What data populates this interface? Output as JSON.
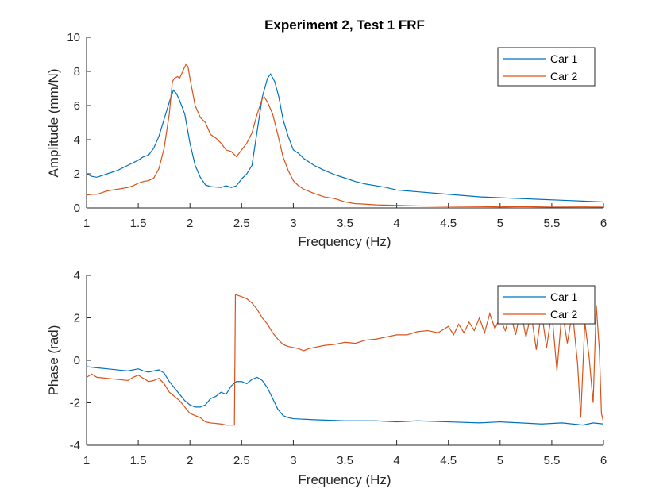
{
  "chart_data": [
    {
      "type": "line",
      "title": "Experiment 2, Test 1 FRF",
      "xlabel": "Frequency (Hz)",
      "ylabel": "Amplitude (mm/N)",
      "xlim": [
        1,
        6
      ],
      "ylim": [
        0,
        10
      ],
      "xticks": [
        1,
        1.5,
        2,
        2.5,
        3,
        3.5,
        4,
        4.5,
        5,
        5.5,
        6
      ],
      "xtick_labels": [
        "1",
        "1.5",
        "2",
        "2.5",
        "3",
        "3.5",
        "4",
        "4.5",
        "5",
        "5.5",
        "6"
      ],
      "yticks": [
        0,
        2,
        4,
        6,
        8,
        10
      ],
      "ytick_labels": [
        "0",
        "2",
        "4",
        "6",
        "8",
        "10"
      ],
      "legend_position": "top-right",
      "grid": false,
      "series": [
        {
          "name": "Car 1",
          "color": "#0072BD",
          "points": [
            [
              1.0,
              2.0
            ],
            [
              1.05,
              1.85
            ],
            [
              1.1,
              1.8
            ],
            [
              1.15,
              1.9
            ],
            [
              1.2,
              2.0
            ],
            [
              1.3,
              2.2
            ],
            [
              1.4,
              2.5
            ],
            [
              1.5,
              2.8
            ],
            [
              1.55,
              3.0
            ],
            [
              1.6,
              3.1
            ],
            [
              1.65,
              3.5
            ],
            [
              1.7,
              4.2
            ],
            [
              1.75,
              5.2
            ],
            [
              1.8,
              6.2
            ],
            [
              1.84,
              6.9
            ],
            [
              1.87,
              6.7
            ],
            [
              1.9,
              6.3
            ],
            [
              1.95,
              5.5
            ],
            [
              2.0,
              3.8
            ],
            [
              2.05,
              2.5
            ],
            [
              2.1,
              1.8
            ],
            [
              2.15,
              1.35
            ],
            [
              2.2,
              1.25
            ],
            [
              2.3,
              1.2
            ],
            [
              2.35,
              1.3
            ],
            [
              2.4,
              1.2
            ],
            [
              2.45,
              1.3
            ],
            [
              2.5,
              1.7
            ],
            [
              2.55,
              2.0
            ],
            [
              2.6,
              2.5
            ],
            [
              2.65,
              4.5
            ],
            [
              2.7,
              6.5
            ],
            [
              2.75,
              7.6
            ],
            [
              2.78,
              7.85
            ],
            [
              2.82,
              7.4
            ],
            [
              2.86,
              6.5
            ],
            [
              2.9,
              5.2
            ],
            [
              2.95,
              4.2
            ],
            [
              3.0,
              3.4
            ],
            [
              3.05,
              3.2
            ],
            [
              3.1,
              2.9
            ],
            [
              3.2,
              2.5
            ],
            [
              3.3,
              2.2
            ],
            [
              3.4,
              1.95
            ],
            [
              3.5,
              1.75
            ],
            [
              3.6,
              1.55
            ],
            [
              3.7,
              1.4
            ],
            [
              3.8,
              1.3
            ],
            [
              3.9,
              1.2
            ],
            [
              4.0,
              1.05
            ],
            [
              4.2,
              0.95
            ],
            [
              4.4,
              0.85
            ],
            [
              4.6,
              0.75
            ],
            [
              4.8,
              0.65
            ],
            [
              5.0,
              0.6
            ],
            [
              5.2,
              0.55
            ],
            [
              5.4,
              0.5
            ],
            [
              5.6,
              0.45
            ],
            [
              5.8,
              0.4
            ],
            [
              6.0,
              0.35
            ]
          ]
        },
        {
          "name": "Car 2",
          "color": "#D95319",
          "points": [
            [
              1.0,
              0.75
            ],
            [
              1.05,
              0.8
            ],
            [
              1.1,
              0.8
            ],
            [
              1.15,
              0.9
            ],
            [
              1.2,
              1.0
            ],
            [
              1.3,
              1.1
            ],
            [
              1.4,
              1.2
            ],
            [
              1.45,
              1.3
            ],
            [
              1.5,
              1.45
            ],
            [
              1.55,
              1.55
            ],
            [
              1.6,
              1.6
            ],
            [
              1.65,
              1.75
            ],
            [
              1.7,
              2.3
            ],
            [
              1.75,
              3.5
            ],
            [
              1.8,
              5.5
            ],
            [
              1.83,
              7.4
            ],
            [
              1.85,
              7.6
            ],
            [
              1.88,
              7.7
            ],
            [
              1.9,
              7.6
            ],
            [
              1.93,
              8.0
            ],
            [
              1.96,
              8.4
            ],
            [
              1.98,
              8.3
            ],
            [
              2.0,
              7.6
            ],
            [
              2.05,
              6.0
            ],
            [
              2.1,
              5.3
            ],
            [
              2.15,
              5.0
            ],
            [
              2.2,
              4.3
            ],
            [
              2.25,
              4.1
            ],
            [
              2.3,
              3.8
            ],
            [
              2.35,
              3.4
            ],
            [
              2.4,
              3.3
            ],
            [
              2.45,
              3.0
            ],
            [
              2.5,
              3.4
            ],
            [
              2.55,
              3.8
            ],
            [
              2.6,
              4.4
            ],
            [
              2.65,
              5.5
            ],
            [
              2.7,
              6.4
            ],
            [
              2.72,
              6.5
            ],
            [
              2.75,
              6.2
            ],
            [
              2.8,
              5.5
            ],
            [
              2.85,
              4.3
            ],
            [
              2.9,
              3.0
            ],
            [
              2.95,
              2.2
            ],
            [
              3.0,
              1.6
            ],
            [
              3.05,
              1.3
            ],
            [
              3.1,
              1.1
            ],
            [
              3.2,
              0.85
            ],
            [
              3.3,
              0.65
            ],
            [
              3.4,
              0.55
            ],
            [
              3.5,
              0.35
            ],
            [
              3.6,
              0.25
            ],
            [
              3.7,
              0.22
            ],
            [
              3.8,
              0.18
            ],
            [
              4.0,
              0.15
            ],
            [
              4.2,
              0.12
            ],
            [
              4.5,
              0.1
            ],
            [
              4.8,
              0.08
            ],
            [
              5.0,
              0.06
            ],
            [
              5.2,
              0.08
            ],
            [
              5.5,
              0.05
            ],
            [
              5.8,
              0.06
            ],
            [
              6.0,
              0.05
            ]
          ]
        }
      ]
    },
    {
      "type": "line",
      "title": "",
      "xlabel": "Frequency (Hz)",
      "ylabel": "Phase (rad)",
      "xlim": [
        1,
        6
      ],
      "ylim": [
        -4,
        4
      ],
      "xticks": [
        1,
        1.5,
        2,
        2.5,
        3,
        3.5,
        4,
        4.5,
        5,
        5.5,
        6
      ],
      "xtick_labels": [
        "1",
        "1.5",
        "2",
        "2.5",
        "3",
        "3.5",
        "4",
        "4.5",
        "5",
        "5.5",
        "6"
      ],
      "yticks": [
        -4,
        -2,
        0,
        2,
        4
      ],
      "ytick_labels": [
        "-4",
        "-2",
        "0",
        "2",
        "4"
      ],
      "legend_position": "top-right",
      "grid": false,
      "series": [
        {
          "name": "Car 1",
          "color": "#0072BD",
          "points": [
            [
              1.0,
              -0.3
            ],
            [
              1.1,
              -0.35
            ],
            [
              1.2,
              -0.4
            ],
            [
              1.3,
              -0.45
            ],
            [
              1.4,
              -0.5
            ],
            [
              1.5,
              -0.4
            ],
            [
              1.55,
              -0.5
            ],
            [
              1.6,
              -0.55
            ],
            [
              1.65,
              -0.5
            ],
            [
              1.7,
              -0.45
            ],
            [
              1.75,
              -0.6
            ],
            [
              1.8,
              -1.0
            ],
            [
              1.85,
              -1.3
            ],
            [
              1.9,
              -1.6
            ],
            [
              1.95,
              -1.9
            ],
            [
              2.0,
              -2.1
            ],
            [
              2.05,
              -2.2
            ],
            [
              2.1,
              -2.2
            ],
            [
              2.15,
              -2.1
            ],
            [
              2.2,
              -1.8
            ],
            [
              2.25,
              -1.7
            ],
            [
              2.3,
              -1.5
            ],
            [
              2.35,
              -1.6
            ],
            [
              2.4,
              -1.2
            ],
            [
              2.45,
              -1.0
            ],
            [
              2.5,
              -1.0
            ],
            [
              2.55,
              -1.1
            ],
            [
              2.6,
              -0.9
            ],
            [
              2.65,
              -0.8
            ],
            [
              2.7,
              -0.95
            ],
            [
              2.75,
              -1.3
            ],
            [
              2.8,
              -1.8
            ],
            [
              2.85,
              -2.3
            ],
            [
              2.9,
              -2.6
            ],
            [
              2.95,
              -2.7
            ],
            [
              3.0,
              -2.75
            ],
            [
              3.2,
              -2.8
            ],
            [
              3.5,
              -2.85
            ],
            [
              3.8,
              -2.85
            ],
            [
              4.0,
              -2.9
            ],
            [
              4.2,
              -2.85
            ],
            [
              4.5,
              -2.9
            ],
            [
              4.8,
              -2.95
            ],
            [
              5.0,
              -2.9
            ],
            [
              5.2,
              -2.95
            ],
            [
              5.4,
              -3.0
            ],
            [
              5.6,
              -2.95
            ],
            [
              5.8,
              -3.05
            ],
            [
              5.9,
              -2.95
            ],
            [
              6.0,
              -3.0
            ]
          ]
        },
        {
          "name": "Car 2",
          "color": "#D95319",
          "points": [
            [
              1.0,
              -0.8
            ],
            [
              1.05,
              -0.65
            ],
            [
              1.1,
              -0.8
            ],
            [
              1.2,
              -0.85
            ],
            [
              1.3,
              -0.9
            ],
            [
              1.4,
              -0.95
            ],
            [
              1.45,
              -0.8
            ],
            [
              1.5,
              -0.7
            ],
            [
              1.55,
              -0.85
            ],
            [
              1.6,
              -1.0
            ],
            [
              1.65,
              -0.95
            ],
            [
              1.7,
              -0.85
            ],
            [
              1.75,
              -1.1
            ],
            [
              1.8,
              -1.5
            ],
            [
              1.85,
              -1.7
            ],
            [
              1.9,
              -1.9
            ],
            [
              1.95,
              -2.2
            ],
            [
              2.0,
              -2.5
            ],
            [
              2.05,
              -2.6
            ],
            [
              2.1,
              -2.7
            ],
            [
              2.15,
              -2.9
            ],
            [
              2.2,
              -2.95
            ],
            [
              2.3,
              -3.0
            ],
            [
              2.35,
              -3.05
            ],
            [
              2.4,
              -3.05
            ],
            [
              2.43,
              -3.05
            ],
            [
              2.44,
              3.1
            ],
            [
              2.5,
              3.0
            ],
            [
              2.55,
              2.9
            ],
            [
              2.6,
              2.7
            ],
            [
              2.65,
              2.4
            ],
            [
              2.7,
              2.0
            ],
            [
              2.75,
              1.7
            ],
            [
              2.8,
              1.3
            ],
            [
              2.85,
              1.0
            ],
            [
              2.9,
              0.75
            ],
            [
              2.95,
              0.65
            ],
            [
              3.0,
              0.6
            ],
            [
              3.05,
              0.55
            ],
            [
              3.1,
              0.45
            ],
            [
              3.15,
              0.55
            ],
            [
              3.2,
              0.6
            ],
            [
              3.3,
              0.7
            ],
            [
              3.4,
              0.75
            ],
            [
              3.5,
              0.85
            ],
            [
              3.6,
              0.8
            ],
            [
              3.7,
              0.95
            ],
            [
              3.8,
              1.0
            ],
            [
              3.9,
              1.1
            ],
            [
              4.0,
              1.2
            ],
            [
              4.1,
              1.2
            ],
            [
              4.2,
              1.35
            ],
            [
              4.3,
              1.4
            ],
            [
              4.4,
              1.3
            ],
            [
              4.5,
              1.6
            ],
            [
              4.55,
              1.2
            ],
            [
              4.6,
              1.7
            ],
            [
              4.65,
              1.3
            ],
            [
              4.7,
              1.8
            ],
            [
              4.75,
              1.4
            ],
            [
              4.8,
              2.0
            ],
            [
              4.85,
              1.3
            ],
            [
              4.9,
              2.2
            ],
            [
              4.95,
              1.5
            ],
            [
              5.0,
              2.0
            ],
            [
              5.05,
              1.4
            ],
            [
              5.1,
              2.2
            ],
            [
              5.15,
              1.2
            ],
            [
              5.2,
              2.4
            ],
            [
              5.25,
              1.1
            ],
            [
              5.3,
              2.2
            ],
            [
              5.35,
              0.5
            ],
            [
              5.4,
              2.3
            ],
            [
              5.45,
              0.6
            ],
            [
              5.5,
              2.3
            ],
            [
              5.55,
              -0.5
            ],
            [
              5.6,
              2.4
            ],
            [
              5.65,
              0.8
            ],
            [
              5.7,
              2.3
            ],
            [
              5.75,
              -0.2
            ],
            [
              5.78,
              -2.7
            ],
            [
              5.82,
              1.8
            ],
            [
              5.86,
              0.2
            ],
            [
              5.9,
              -2.0
            ],
            [
              5.93,
              2.6
            ],
            [
              5.96,
              0.5
            ],
            [
              5.98,
              -2.5
            ],
            [
              6.0,
              -2.9
            ]
          ]
        }
      ]
    }
  ]
}
